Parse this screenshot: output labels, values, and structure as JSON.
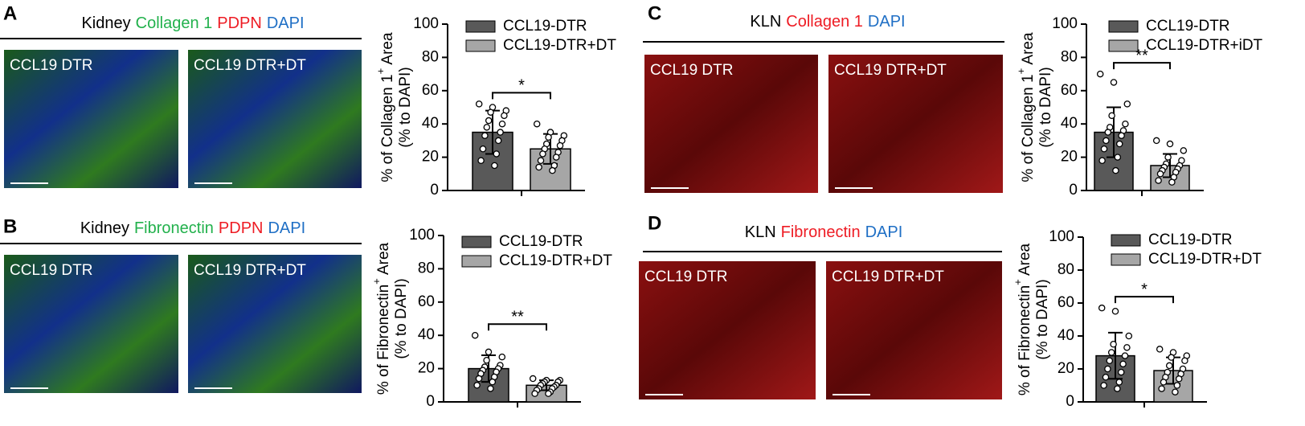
{
  "chart_data": [
    {
      "type": "bar",
      "panel": "A",
      "stain": [
        {
          "text": "Kidney",
          "color": "#000000"
        },
        {
          "text": "Collagen 1",
          "color": "#22b14c"
        },
        {
          "text": "PDPN",
          "color": "#ee1c24"
        },
        {
          "text": "DAPI",
          "color": "#1f6fc5"
        }
      ],
      "images": [
        "CCL19 DTR",
        "CCL19 DTR+DT"
      ],
      "ylabel": {
        "main": "% of Collagen 1",
        "sup": "+",
        "after": " Area",
        "line2": "(% to DAPI)"
      },
      "ylim": [
        0,
        100
      ],
      "yticks": [
        0,
        20,
        40,
        60,
        80,
        100
      ],
      "significance": "*",
      "series": [
        {
          "name": "CCL19-DTR",
          "color": "#595959",
          "values": [
            35
          ],
          "error": [
            13
          ],
          "points": [
            52,
            50,
            48,
            47,
            45,
            42,
            40,
            38,
            35,
            33,
            30,
            25,
            22,
            18,
            15
          ]
        },
        {
          "name": "CCL19-DTR+DT",
          "color": "#a6a6a6",
          "values": [
            25
          ],
          "error": [
            9
          ],
          "points": [
            40,
            35,
            33,
            32,
            30,
            28,
            27,
            25,
            23,
            22,
            20,
            18,
            15,
            14,
            12
          ]
        }
      ]
    },
    {
      "type": "bar",
      "panel": "B",
      "stain": [
        {
          "text": "Kidney",
          "color": "#000000"
        },
        {
          "text": "Fibronectin",
          "color": "#22b14c"
        },
        {
          "text": "PDPN",
          "color": "#ee1c24"
        },
        {
          "text": "DAPI",
          "color": "#1f6fc5"
        }
      ],
      "images": [
        "CCL19 DTR",
        "CCL19 DTR+DT"
      ],
      "ylabel": {
        "main": "% of Fibronectin",
        "sup": "+",
        "after": " Area",
        "line2": "(% to DAPI)"
      },
      "ylim": [
        0,
        100
      ],
      "yticks": [
        0,
        20,
        40,
        60,
        80,
        100
      ],
      "significance": "**",
      "series": [
        {
          "name": "CCL19-DTR",
          "color": "#595959",
          "values": [
            20
          ],
          "error": [
            8
          ],
          "points": [
            40,
            30,
            27,
            25,
            22,
            21,
            20,
            19,
            18,
            17,
            15,
            14,
            12,
            10,
            8
          ]
        },
        {
          "name": "CCL19-DTR+DT",
          "color": "#a6a6a6",
          "values": [
            10
          ],
          "error": [
            3
          ],
          "points": [
            14,
            13,
            13,
            12,
            12,
            11,
            10,
            10,
            9,
            8,
            8,
            7,
            6,
            5,
            5
          ]
        }
      ]
    },
    {
      "type": "bar",
      "panel": "C",
      "stain": [
        {
          "text": "KLN",
          "color": "#000000"
        },
        {
          "text": "Collagen 1",
          "color": "#ee1c24"
        },
        {
          "text": "DAPI",
          "color": "#1f6fc5"
        }
      ],
      "images": [
        "CCL19 DTR",
        "CCL19 DTR+DT"
      ],
      "ylabel": {
        "main": "% of Collagen 1",
        "sup": "+",
        "after": " Area",
        "line2": "(% to DAPI)"
      },
      "ylim": [
        0,
        100
      ],
      "yticks": [
        0,
        20,
        40,
        60,
        80,
        100
      ],
      "significance": "**",
      "series": [
        {
          "name": "CCL19-DTR",
          "color": "#595959",
          "values": [
            35
          ],
          "error": [
            15
          ],
          "points": [
            70,
            65,
            52,
            45,
            40,
            38,
            36,
            35,
            33,
            30,
            28,
            25,
            20,
            18,
            12
          ]
        },
        {
          "name": "CCL19-DTR+iDT",
          "color": "#a6a6a6",
          "values": [
            15
          ],
          "error": [
            7
          ],
          "points": [
            30,
            28,
            24,
            20,
            18,
            16,
            15,
            14,
            13,
            12,
            11,
            10,
            8,
            6,
            5
          ]
        }
      ]
    },
    {
      "type": "bar",
      "panel": "D",
      "stain": [
        {
          "text": "KLN",
          "color": "#000000"
        },
        {
          "text": "Fibronectin",
          "color": "#ee1c24"
        },
        {
          "text": "DAPI",
          "color": "#1f6fc5"
        }
      ],
      "images": [
        "CCL19 DTR",
        "CCL19 DTR+DT"
      ],
      "ylabel": {
        "main": "% of Fibronectin",
        "sup": "+",
        "after": " Area",
        "line2": "(% to DAPI)"
      },
      "ylim": [
        0,
        100
      ],
      "yticks": [
        0,
        20,
        40,
        60,
        80,
        100
      ],
      "significance": "*",
      "series": [
        {
          "name": "CCL19-DTR",
          "color": "#595959",
          "values": [
            28
          ],
          "error": [
            14
          ],
          "points": [
            57,
            55,
            40,
            35,
            33,
            30,
            28,
            25,
            23,
            20,
            18,
            15,
            12,
            10,
            8
          ]
        },
        {
          "name": "CCL19-DTR+DT",
          "color": "#a6a6a6",
          "values": [
            19
          ],
          "error": [
            8
          ],
          "points": [
            32,
            30,
            28,
            27,
            25,
            22,
            20,
            18,
            17,
            15,
            14,
            12,
            10,
            8,
            6
          ]
        }
      ]
    }
  ]
}
